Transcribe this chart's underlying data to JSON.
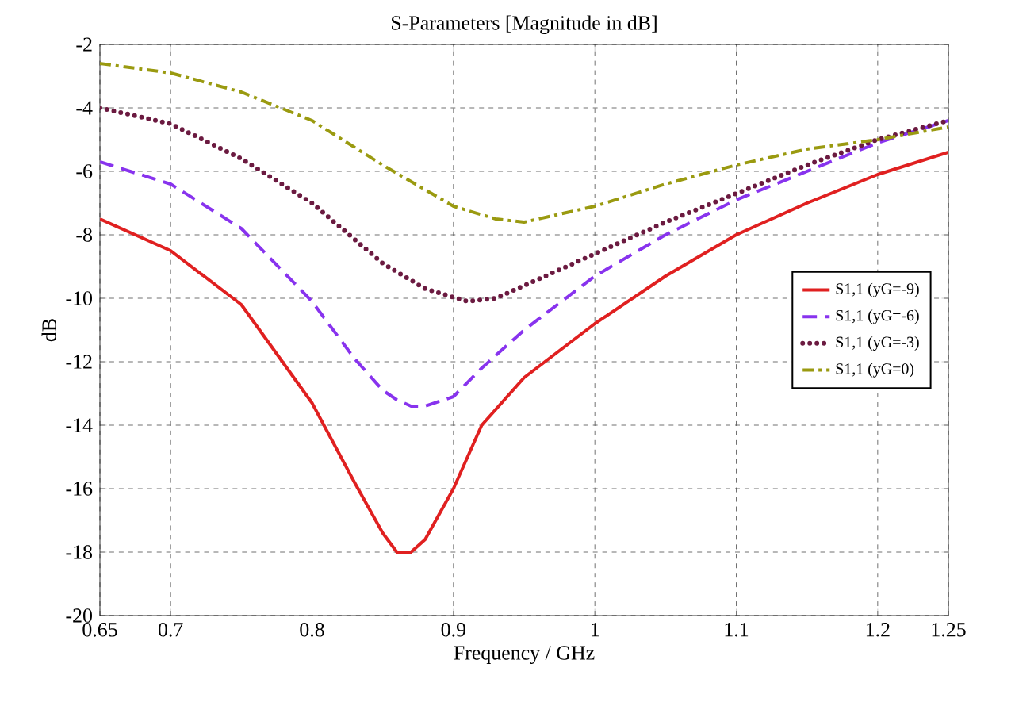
{
  "chart_data": {
    "type": "line",
    "title": "S-Parameters [Magnitude in dB]",
    "xlabel": "Frequency / GHz",
    "ylabel": "dB",
    "xlim": [
      0.65,
      1.25
    ],
    "xticks": [
      0.65,
      0.7,
      0.8,
      0.9,
      1,
      1.1,
      1.2,
      1.25
    ],
    "ylim": [
      -20,
      -2
    ],
    "yticks": [
      -20,
      -18,
      -16,
      -14,
      -12,
      -10,
      -8,
      -6,
      -4,
      -2
    ],
    "grid": true,
    "legend": "right",
    "x": [
      0.65,
      0.7,
      0.75,
      0.8,
      0.83,
      0.85,
      0.86,
      0.87,
      0.88,
      0.9,
      0.92,
      0.95,
      1.0,
      1.05,
      1.1,
      1.15,
      1.2,
      1.25
    ],
    "series": [
      {
        "name": "S1,1 (yG=-9)",
        "color": "#e02020",
        "line_style": "solid",
        "values": [
          -7.5,
          -8.5,
          -10.2,
          -13.3,
          -15.8,
          -17.4,
          -18,
          -18,
          -17.6,
          -16.0,
          -14.0,
          -12.5,
          -10.8,
          -9.3,
          -8.0,
          -7.0,
          -6.1,
          -5.4
        ]
      },
      {
        "name": "S1,1 (yG=-6)",
        "color": "#8833ee",
        "line_style": "dashed",
        "values": [
          -5.7,
          -6.4,
          -7.8,
          -10.1,
          -11.9,
          -12.9,
          -13.2,
          -13.4,
          -13.4,
          -13.1,
          -12.2,
          -11.0,
          -9.3,
          -8.0,
          -6.9,
          -6.0,
          -5.1,
          -4.4
        ]
      },
      {
        "name": "S1,1 (yG=-3)",
        "color": "#6b1a40",
        "line_style": "dotted",
        "x": [
          0.65,
          0.7,
          0.75,
          0.8,
          0.85,
          0.88,
          0.91,
          0.93,
          0.95,
          1.0,
          1.05,
          1.1,
          1.15,
          1.2,
          1.25
        ],
        "values": [
          -4.0,
          -4.5,
          -5.6,
          -7.0,
          -8.9,
          -9.7,
          -10.1,
          -10.0,
          -9.6,
          -8.6,
          -7.6,
          -6.7,
          -5.8,
          -5.0,
          -4.4
        ]
      },
      {
        "name": "S1,1 (yG=0)",
        "color": "#9a9a10",
        "line_style": "dashdot",
        "x": [
          0.65,
          0.7,
          0.75,
          0.8,
          0.85,
          0.9,
          0.93,
          0.95,
          0.98,
          1.0,
          1.05,
          1.1,
          1.15,
          1.2,
          1.25
        ],
        "values": [
          -2.6,
          -2.9,
          -3.5,
          -4.4,
          -5.8,
          -7.1,
          -7.5,
          -7.6,
          -7.3,
          -7.1,
          -6.4,
          -5.8,
          -5.3,
          -5.0,
          -4.6
        ]
      }
    ]
  }
}
